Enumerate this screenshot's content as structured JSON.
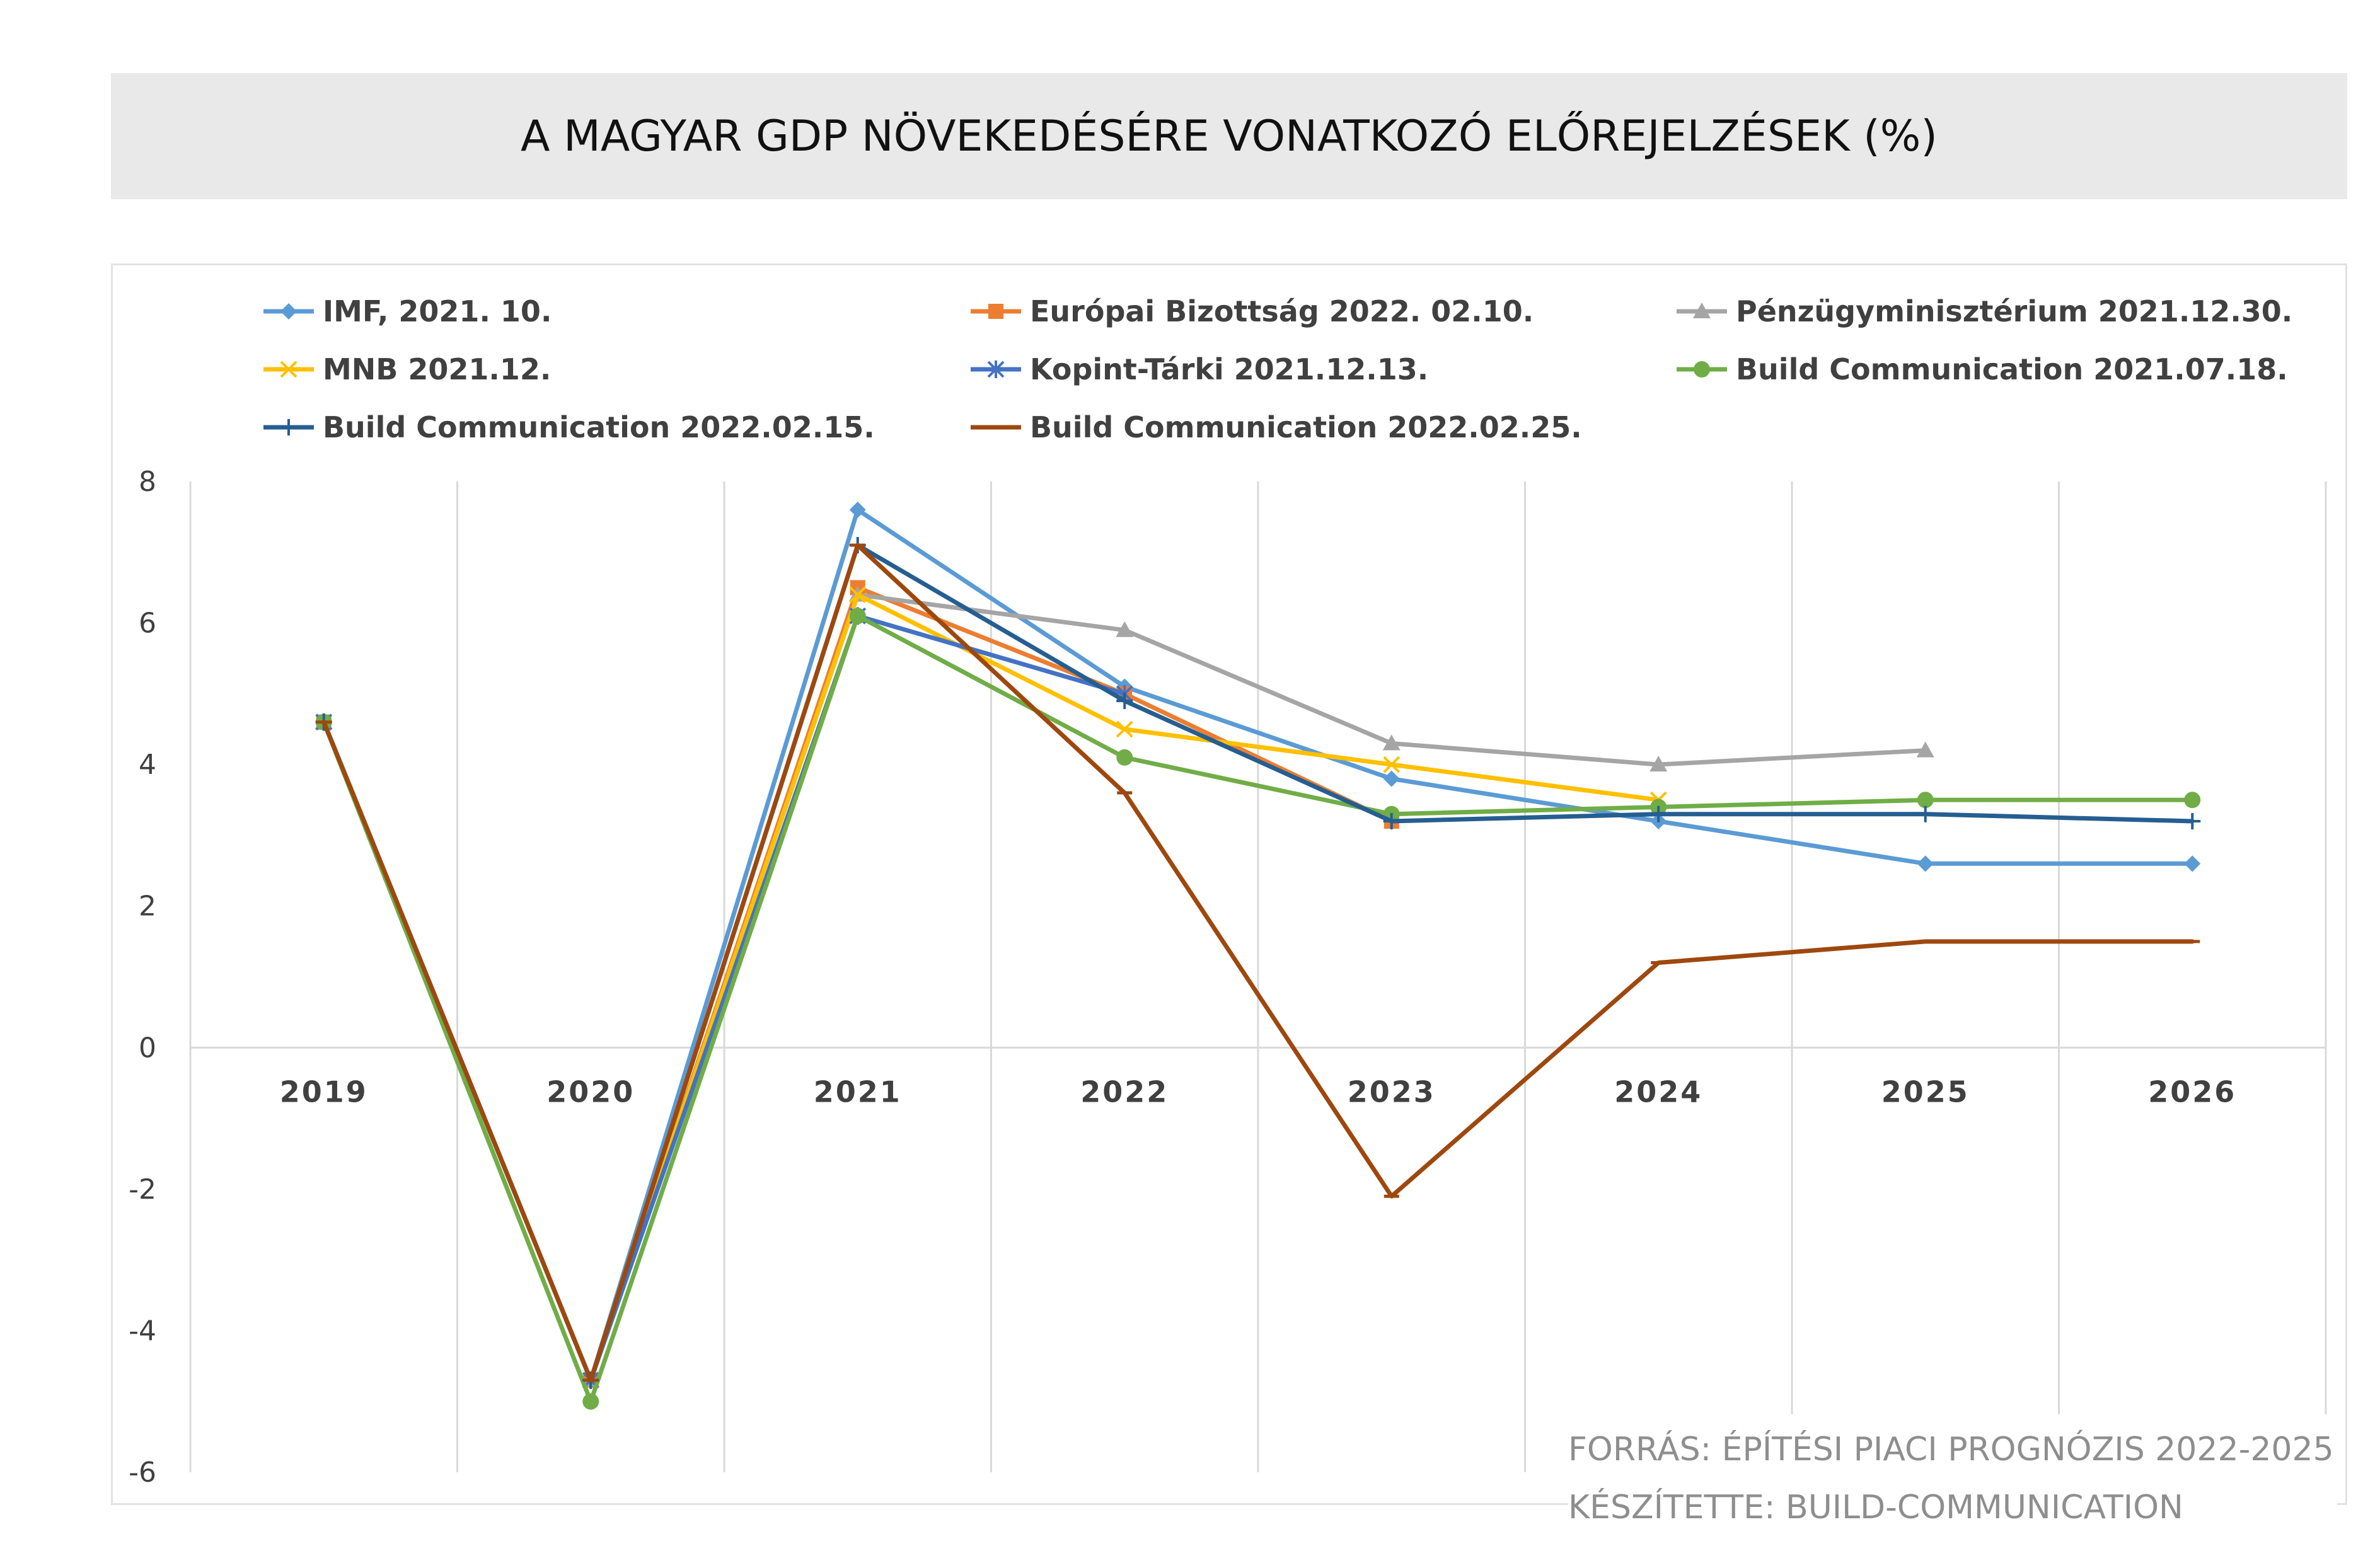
{
  "title": "A MAGYAR GDP NÖVEKEDÉSÉRE VONATKOZÓ ELŐREJELZÉSEK (%)",
  "source": {
    "line1": "FORRÁS: ÉPÍTÉSI PIACI PROGNÓZIS 2022-2025",
    "line2": "KÉSZÍTETTE: BUILD-COMMUNICATION"
  },
  "chart_data": {
    "type": "line",
    "title": "A MAGYAR GDP NÖVEKEDÉSÉRE VONATKOZÓ ELŐREJELZÉSEK (%)",
    "xlabel": "",
    "ylabel": "",
    "categories": [
      "2019",
      "2020",
      "2021",
      "2022",
      "2023",
      "2024",
      "2025",
      "2026"
    ],
    "ylim": [
      -6,
      8
    ],
    "yticks": [
      8,
      6,
      4,
      2,
      0,
      -2,
      -4,
      -6
    ],
    "grid": "vertical",
    "legend_position": "top",
    "series": [
      {
        "name": "IMF, 2021. 10.",
        "color": "#5b9bd5",
        "marker": "diamond",
        "values": [
          4.6,
          -4.7,
          7.6,
          5.1,
          3.8,
          3.2,
          2.6,
          2.6
        ]
      },
      {
        "name": "Európai Bizottság 2022. 02.10.",
        "color": "#ed7d31",
        "marker": "square",
        "values": [
          4.6,
          -4.7,
          6.5,
          5.0,
          3.2,
          null,
          null,
          null
        ]
      },
      {
        "name": "Pénzügyminisztérium  2021.12.30.",
        "color": "#a5a5a5",
        "marker": "triangle",
        "values": [
          4.6,
          -4.7,
          6.4,
          5.9,
          4.3,
          4.0,
          4.2,
          null
        ]
      },
      {
        "name": "MNB 2021.12.",
        "color": "#ffc000",
        "marker": "x",
        "values": [
          4.6,
          -4.7,
          6.4,
          4.5,
          4.0,
          3.5,
          null,
          null
        ]
      },
      {
        "name": "Kopint-Tárki 2021.12.13.",
        "color": "#4472c4",
        "marker": "star",
        "values": [
          4.6,
          -4.7,
          6.1,
          5.0,
          null,
          null,
          null,
          null
        ]
      },
      {
        "name": "Build Communication 2021.07.18.",
        "color": "#70ad47",
        "marker": "circle",
        "values": [
          4.6,
          -5.0,
          6.1,
          4.1,
          3.3,
          3.4,
          3.5,
          3.5
        ]
      },
      {
        "name": "Build Communication 2022.02.15.",
        "color": "#255e91",
        "marker": "plus",
        "values": [
          4.6,
          -4.7,
          7.1,
          4.9,
          3.2,
          3.3,
          3.3,
          3.2
        ]
      },
      {
        "name": "Build Communication 2022.02.25.",
        "color": "#9e480e",
        "marker": "dash",
        "values": [
          4.6,
          -4.7,
          7.1,
          3.6,
          -2.1,
          1.2,
          1.5,
          1.5
        ]
      }
    ]
  }
}
